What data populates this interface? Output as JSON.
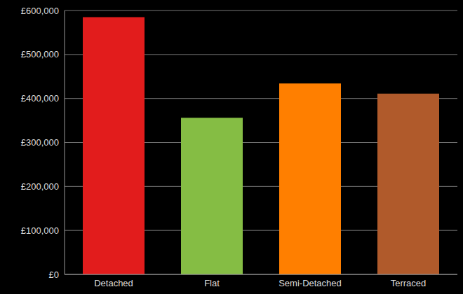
{
  "chart_data": {
    "type": "bar",
    "categories": [
      "Detached",
      "Flat",
      "Semi-Detached",
      "Terraced"
    ],
    "values": [
      585000,
      356000,
      434000,
      411000
    ],
    "colors": [
      "#e21c1c",
      "#85bd44",
      "#ff7f00",
      "#b05a2b"
    ],
    "ylim": [
      0,
      600000
    ],
    "yticks": [
      {
        "value": 0,
        "label": "£0"
      },
      {
        "value": 100000,
        "label": "£100,000"
      },
      {
        "value": 200000,
        "label": "£200,000"
      },
      {
        "value": 300000,
        "label": "£300,000"
      },
      {
        "value": 400000,
        "label": "£400,000"
      },
      {
        "value": 500000,
        "label": "£500,000"
      },
      {
        "value": 600000,
        "label": "£600,000"
      }
    ],
    "grid": true
  }
}
